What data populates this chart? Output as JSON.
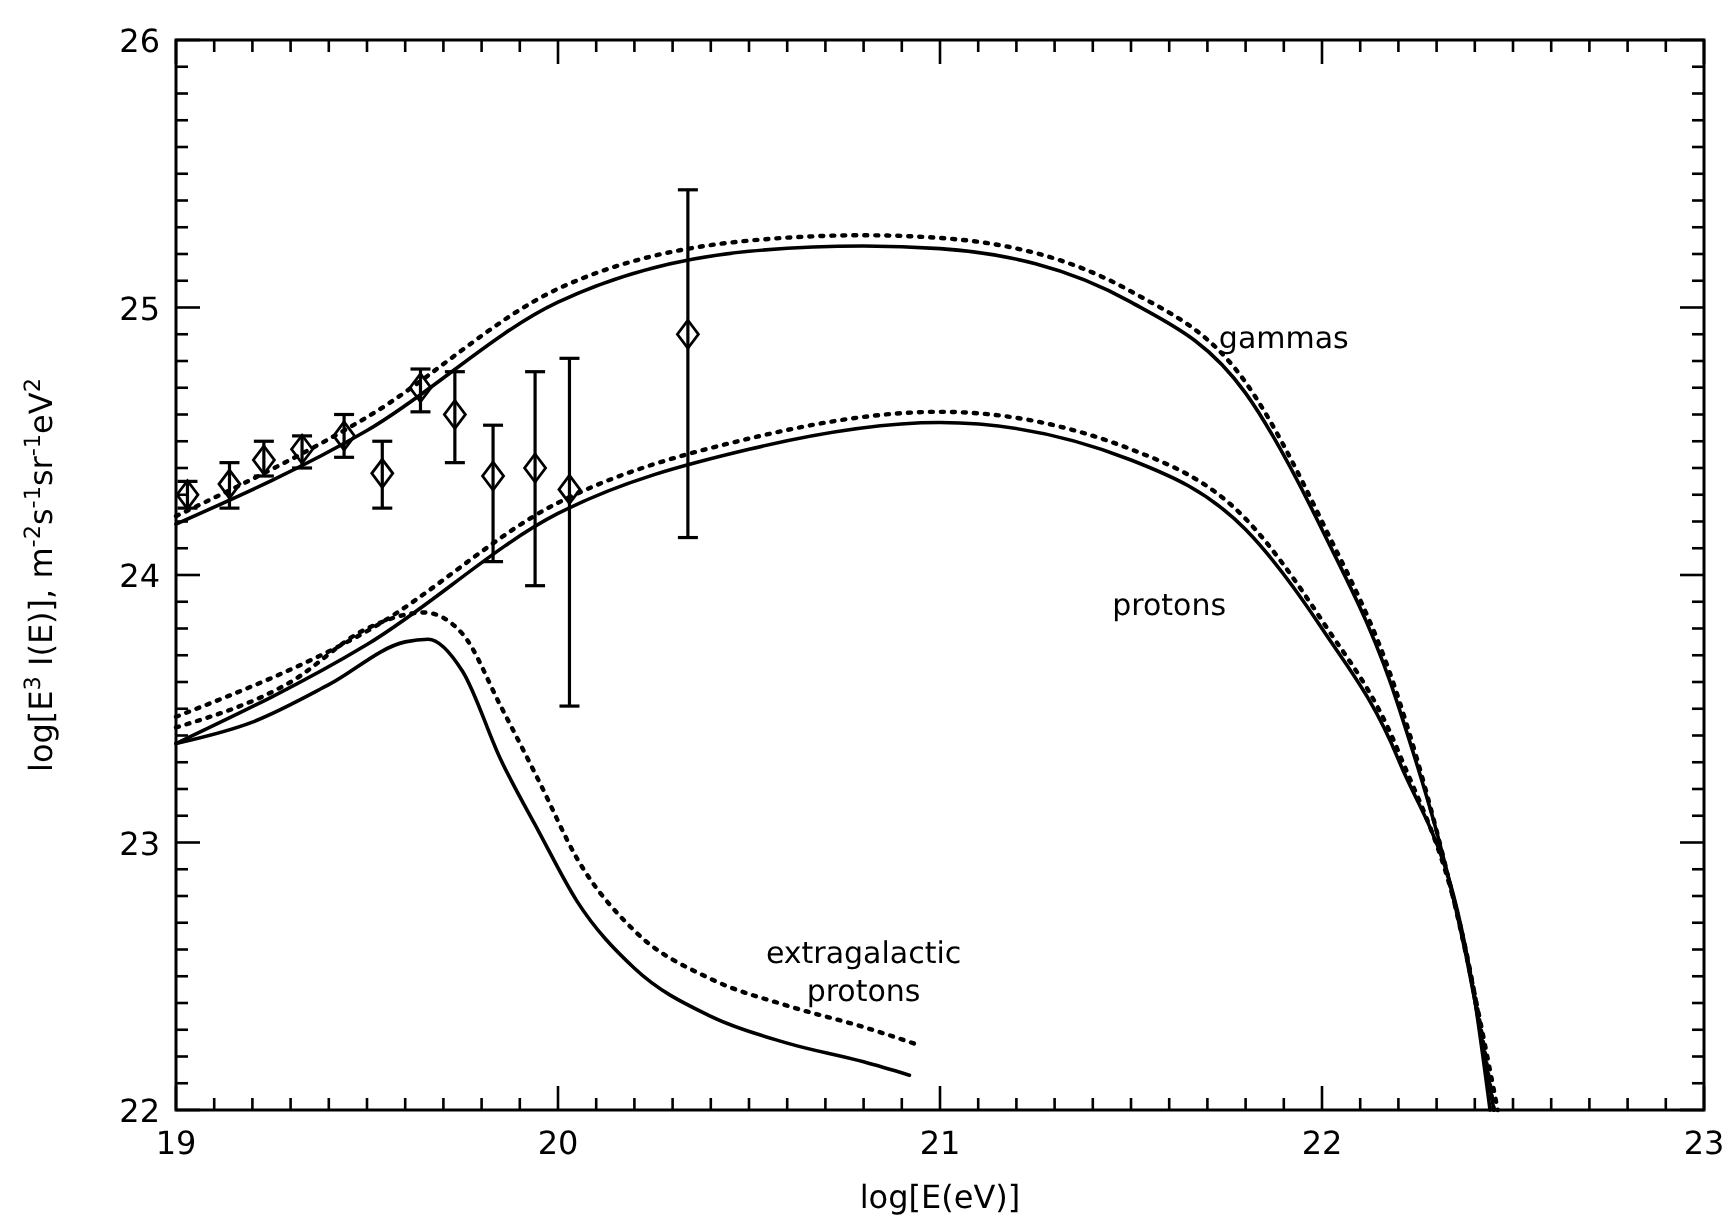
{
  "chart_data": {
    "type": "line",
    "xlabel": "log[E(eV)]",
    "ylabel": "log[E$^{3}$ I(E)], m$^{-2}$s$^{-1}$sr$^{-1}$eV$^{2}$",
    "xlim": [
      19,
      23
    ],
    "ylim": [
      22,
      26
    ],
    "xticks": [
      19,
      {
        "value": 19.1,
        "label": null
      },
      {
        "value": 19.2,
        "label": null
      },
      {
        "value": 19.3,
        "label": null
      },
      {
        "value": 19.4,
        "label": null
      },
      {
        "value": 19.5,
        "label": null
      },
      {
        "value": 19.6,
        "label": null
      },
      {
        "value": 19.7,
        "label": null
      },
      {
        "value": 19.8,
        "label": null
      },
      {
        "value": 19.9,
        "label": null
      },
      20,
      {
        "value": 20.1,
        "label": null
      },
      {
        "value": 20.2,
        "label": null
      },
      {
        "value": 20.3,
        "label": null
      },
      {
        "value": 20.4,
        "label": null
      },
      {
        "value": 20.5,
        "label": null
      },
      {
        "value": 20.6,
        "label": null
      },
      {
        "value": 20.7,
        "label": null
      },
      {
        "value": 20.8,
        "label": null
      },
      {
        "value": 20.9,
        "label": null
      },
      21,
      {
        "value": 21.1,
        "label": null
      },
      {
        "value": 21.2,
        "label": null
      },
      {
        "value": 21.3,
        "label": null
      },
      {
        "value": 21.4,
        "label": null
      },
      {
        "value": 21.5,
        "label": null
      },
      {
        "value": 21.6,
        "label": null
      },
      {
        "value": 21.7,
        "label": null
      },
      {
        "value": 21.8,
        "label": null
      },
      {
        "value": 21.9,
        "label": null
      },
      22,
      {
        "value": 22.1,
        "label": null
      },
      {
        "value": 22.2,
        "label": null
      },
      {
        "value": 22.3,
        "label": null
      },
      {
        "value": 22.4,
        "label": null
      },
      {
        "value": 22.5,
        "label": null
      },
      {
        "value": 22.6,
        "label": null
      },
      {
        "value": 22.7,
        "label": null
      },
      {
        "value": 22.8,
        "label": null
      },
      {
        "value": 22.9,
        "label": null
      },
      23
    ],
    "yticks": [
      22,
      {
        "value": 22.1,
        "label": null
      },
      {
        "value": 22.2,
        "label": null
      },
      {
        "value": 22.3,
        "label": null
      },
      {
        "value": 22.4,
        "label": null
      },
      {
        "value": 22.5,
        "label": null
      },
      {
        "value": 22.6,
        "label": null
      },
      {
        "value": 22.7,
        "label": null
      },
      {
        "value": 22.8,
        "label": null
      },
      {
        "value": 22.9,
        "label": null
      },
      23,
      {
        "value": 23.1,
        "label": null
      },
      {
        "value": 23.2,
        "label": null
      },
      {
        "value": 23.3,
        "label": null
      },
      {
        "value": 23.4,
        "label": null
      },
      {
        "value": 23.5,
        "label": null
      },
      {
        "value": 23.6,
        "label": null
      },
      {
        "value": 23.7,
        "label": null
      },
      {
        "value": 23.8,
        "label": null
      },
      {
        "value": 23.9,
        "label": null
      },
      24,
      {
        "value": 24.1,
        "label": null
      },
      {
        "value": 24.2,
        "label": null
      },
      {
        "value": 24.3,
        "label": null
      },
      {
        "value": 24.4,
        "label": null
      },
      {
        "value": 24.5,
        "label": null
      },
      {
        "value": 24.6,
        "label": null
      },
      {
        "value": 24.7,
        "label": null
      },
      {
        "value": 24.8,
        "label": null
      },
      {
        "value": 24.9,
        "label": null
      },
      25,
      {
        "value": 25.1,
        "label": null
      },
      {
        "value": 25.2,
        "label": null
      },
      {
        "value": 25.3,
        "label": null
      },
      {
        "value": 25.4,
        "label": null
      },
      {
        "value": 25.5,
        "label": null
      },
      {
        "value": 25.6,
        "label": null
      },
      {
        "value": 25.7,
        "label": null
      },
      {
        "value": 25.8,
        "label": null
      },
      {
        "value": 25.9,
        "label": null
      },
      26
    ],
    "series": [
      {
        "color": "#000000",
        "line_style": "solid",
        "x": [
          19,
          19.5,
          20,
          20.5,
          20.8,
          21,
          21.5,
          21.8,
          22,
          22.2,
          22.4,
          22.45
        ],
        "values": [
          24.19,
          24.54,
          25.02,
          25.21,
          25.23,
          25.22,
          25.02,
          24.68,
          24.17,
          23.51,
          22.41,
          22.0
        ]
      },
      {
        "color": "#000000",
        "line_style": "dotted",
        "x": [
          19,
          19.5,
          20,
          20.5,
          20.8,
          21,
          21.5,
          21.8,
          22,
          22.2,
          22.4,
          22.46
        ],
        "values": [
          24.22,
          24.59,
          25.07,
          25.25,
          25.27,
          25.26,
          25.06,
          24.72,
          24.2,
          23.54,
          22.43,
          22.0
        ]
      },
      {
        "color": "#000000",
        "line_style": "solid",
        "x": [
          19,
          19.5,
          20,
          20.5,
          21,
          21.5,
          21.8,
          22,
          22.2,
          22.4,
          22.44
        ],
        "values": [
          23.37,
          23.74,
          24.23,
          24.47,
          24.57,
          24.43,
          24.17,
          23.8,
          23.31,
          22.41,
          22.0
        ]
      },
      {
        "color": "#000000",
        "line_style": "dotted",
        "x": [
          19,
          19.5,
          20,
          20.5,
          21,
          21.5,
          21.8,
          22,
          22.2,
          22.4,
          22.45
        ],
        "values": [
          23.47,
          23.79,
          24.27,
          24.51,
          24.61,
          24.47,
          24.21,
          23.83,
          23.34,
          22.43,
          22.0
        ]
      },
      {
        "color": "#000000",
        "line_style": "solid",
        "x": [
          19,
          19.2,
          19.4,
          19.6,
          19.66,
          19.75,
          19.85,
          19.95,
          20.05,
          20.2,
          20.4,
          20.6,
          20.8,
          20.92
        ],
        "values": [
          23.37,
          23.45,
          23.59,
          23.75,
          23.76,
          23.64,
          23.31,
          23.04,
          22.78,
          22.53,
          22.35,
          22.25,
          22.18,
          22.13
        ]
      },
      {
        "color": "#000000",
        "line_style": "dotted",
        "x": [
          19,
          19.3,
          19.5,
          19.65,
          19.75,
          19.85,
          19.95,
          20.05,
          20.2,
          20.4,
          20.6,
          20.8,
          20.95
        ],
        "values": [
          23.43,
          23.6,
          23.8,
          23.86,
          23.78,
          23.51,
          23.23,
          22.94,
          22.67,
          22.49,
          22.39,
          22.31,
          22.24
        ]
      },
      {
        "type": "scatter",
        "color": "#000000",
        "marker": "diamond",
        "x": [
          19.03,
          19.14,
          19.23,
          19.33,
          19.44,
          19.54,
          19.64,
          19.73,
          19.83,
          19.94,
          20.03,
          20.34
        ],
        "values": [
          24.3,
          24.34,
          24.43,
          24.47,
          24.52,
          24.38,
          24.7,
          24.6,
          24.37,
          24.4,
          24.32,
          24.9
        ],
        "errors": [
          [
            24.25,
            24.35
          ],
          [
            24.25,
            24.42
          ],
          [
            24.37,
            24.5
          ],
          [
            24.4,
            24.52
          ],
          [
            24.44,
            24.6
          ],
          [
            24.25,
            24.5
          ],
          [
            24.61,
            24.77
          ],
          [
            24.42,
            24.76
          ],
          [
            24.05,
            24.56
          ],
          [
            23.96,
            24.76
          ],
          [
            23.51,
            24.81
          ],
          [
            24.14,
            25.44
          ]
        ]
      }
    ],
    "annotations": [
      "gammas",
      "protons",
      "extragalactic\nprotons"
    ],
    "grid": false
  }
}
